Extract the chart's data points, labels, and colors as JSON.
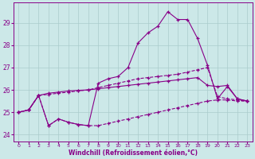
{
  "xlabel": "Windchill (Refroidissement éolien,°C)",
  "bg_color": "#cce8e8",
  "grid_color": "#aacccc",
  "line_color": "#880088",
  "xlim": [
    -0.5,
    23.5
  ],
  "ylim": [
    23.7,
    29.9
  ],
  "xticks": [
    0,
    1,
    2,
    3,
    4,
    5,
    6,
    7,
    8,
    9,
    10,
    11,
    12,
    13,
    14,
    15,
    16,
    17,
    18,
    19,
    20,
    21,
    22,
    23
  ],
  "yticks": [
    24,
    25,
    26,
    27,
    28,
    29
  ],
  "curve1_x": [
    0,
    1,
    2,
    3,
    4,
    5,
    6,
    7,
    8,
    9,
    10,
    11,
    12,
    13,
    14,
    15,
    16,
    17,
    18,
    19,
    20,
    21,
    22,
    23
  ],
  "curve1_y": [
    25.0,
    25.1,
    25.75,
    24.4,
    24.7,
    24.55,
    24.45,
    24.4,
    26.3,
    26.5,
    26.6,
    27.0,
    28.1,
    28.55,
    28.85,
    29.5,
    29.15,
    29.15,
    28.3,
    27.1,
    25.6,
    26.15,
    25.6,
    25.5
  ],
  "curve1_style": "-",
  "curve2_x": [
    0,
    1,
    2,
    3,
    4,
    5,
    6,
    7,
    8,
    9,
    10,
    11,
    12,
    13,
    14,
    15,
    16,
    17,
    18,
    19,
    20,
    21,
    22,
    23
  ],
  "curve2_y": [
    25.0,
    25.1,
    25.75,
    25.8,
    25.85,
    25.9,
    25.95,
    26.0,
    26.1,
    26.2,
    26.3,
    26.4,
    26.5,
    26.55,
    26.6,
    26.65,
    26.7,
    26.8,
    26.9,
    27.0,
    25.7,
    25.6,
    25.55,
    25.5
  ],
  "curve2_style": "--",
  "curve3_x": [
    0,
    1,
    2,
    3,
    4,
    5,
    6,
    7,
    8,
    9,
    10,
    11,
    12,
    13,
    14,
    15,
    16,
    17,
    18,
    19,
    20,
    21,
    22,
    23
  ],
  "curve3_y": [
    25.0,
    25.1,
    25.75,
    25.85,
    25.9,
    25.95,
    25.98,
    26.0,
    26.05,
    26.1,
    26.15,
    26.2,
    26.25,
    26.3,
    26.35,
    26.4,
    26.45,
    26.5,
    26.55,
    26.2,
    26.15,
    26.2,
    25.6,
    25.5
  ],
  "curve3_style": "-",
  "curve4_x": [
    0,
    1,
    2,
    3,
    4,
    5,
    6,
    7,
    8,
    9,
    10,
    11,
    12,
    13,
    14,
    15,
    16,
    17,
    18,
    19,
    20,
    21,
    22,
    23
  ],
  "curve4_y": [
    25.0,
    25.1,
    25.75,
    24.4,
    24.7,
    24.55,
    24.45,
    24.4,
    24.4,
    24.5,
    24.6,
    24.7,
    24.8,
    24.9,
    25.0,
    25.1,
    25.2,
    25.3,
    25.4,
    25.5,
    25.55,
    25.55,
    25.5,
    25.5
  ],
  "curve4_style": "--"
}
